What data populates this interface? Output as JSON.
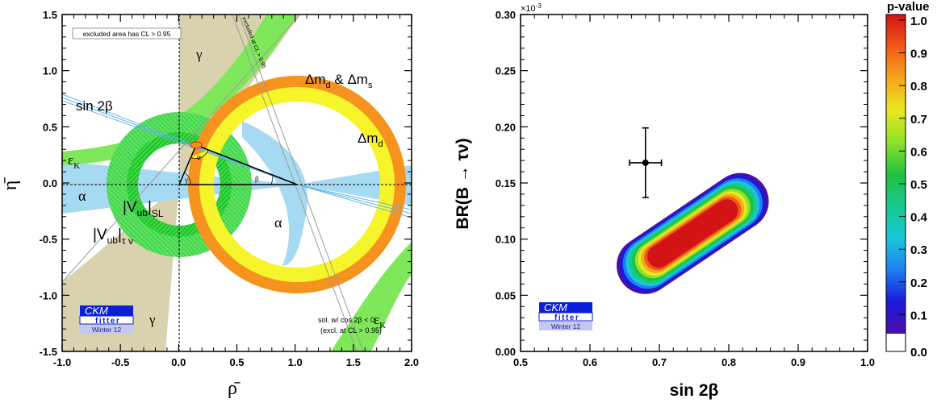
{
  "chart_data": [
    {
      "type": "contour",
      "panel": "left",
      "xlabel": "ρ̄",
      "ylabel": "η̄",
      "xlim": [
        -1.0,
        2.0
      ],
      "ylim": [
        -1.5,
        1.5
      ],
      "x_ticks": [
        "-1.0",
        "-0.5",
        "0.0",
        "0.5",
        "1.0",
        "1.5",
        "2.0"
      ],
      "y_ticks": [
        "1.5",
        "1.0",
        "0.5",
        "0.0",
        "-0.5",
        "-1.0",
        "-1.5"
      ],
      "apex": {
        "rho": 0.14,
        "eta": 0.35
      },
      "labels": {
        "gamma_top": "γ",
        "gamma_bottom": "γ",
        "dmd_dms": "Δm",
        "dmd_dms_sub1": "d",
        "dmd_dms_mid": " & Δm",
        "dmd_dms_sub2": "s",
        "dmd": "Δm",
        "dmd_sub": "d",
        "sin2b": "sin 2β",
        "epsk": "ε",
        "epsk_sub": "K",
        "epsk2": "ε",
        "epsk2_sub": "K",
        "alpha_left": "α",
        "alpha_right": "α",
        "alpha_small": "α",
        "beta_small": "β",
        "gamma_small": "γ",
        "vub_sl": "|V",
        "vub_sl_sub": "ub",
        "vub_sl_end": "|",
        "vub_sl_sub2": "SL",
        "vub_tn": "|V",
        "vub_tn_sub": "ub",
        "vub_tn_end": "|",
        "vub_tn_sub2": "τ ν",
        "excluded_box": "excluded area has CL > 0.95",
        "excluded_rot": "excluded at CL > 0.95",
        "sol_line1": "sol. w/ cos 2β < 0",
        "sol_line2": "(excl. at CL > 0.95)"
      },
      "logo": {
        "ckm": "CKM",
        "fitter": "fitter",
        "edition": "Winter 12"
      }
    },
    {
      "type": "heatmap",
      "panel": "right",
      "xlabel": "sin 2β",
      "ylabel": "BR(B → τν)",
      "xlim": [
        0.5,
        1.0
      ],
      "ylim": [
        0.0,
        0.3
      ],
      "y_multiplier": "×10",
      "y_multiplier_exp": "-3",
      "x_ticks": [
        "0.5",
        "0.6",
        "0.7",
        "0.8",
        "0.9",
        "1.0"
      ],
      "y_ticks": [
        "0.30",
        "0.25",
        "0.20",
        "0.15",
        "0.10",
        "0.05",
        "0.00"
      ],
      "measurement": {
        "x": 0.68,
        "xerr": 0.023,
        "y": 0.168,
        "yerr_low": 0.031,
        "yerr_high": 0.031
      },
      "fit_region": {
        "center": [
          0.748,
          0.105
        ],
        "direction": [
          0.18,
          0.075
        ],
        "half_length": 0.57,
        "half_width": 0.011
      },
      "colorbar": {
        "title": "p-value",
        "ticks": [
          "1.0",
          "0.9",
          "0.8",
          "0.7",
          "0.6",
          "0.5",
          "0.4",
          "0.3",
          "0.2",
          "0.1",
          "0.0"
        ]
      },
      "logo": {
        "ckm": "CKM",
        "fitter": "fitter",
        "edition": "Winter 12"
      }
    }
  ],
  "colors": {
    "gamma": "#d8d3ae",
    "dmd_dms": "#f6f52c",
    "dmd": "#f6921e",
    "epsk": "#7fe85a",
    "vub_sl": "#19c728",
    "vub_tn": "#5fe063",
    "alpha": "#a6daf2",
    "sin2b": "#5fb5e8",
    "logo_blue": "#0a1fd8",
    "logo_light": "#c4c7ee"
  }
}
